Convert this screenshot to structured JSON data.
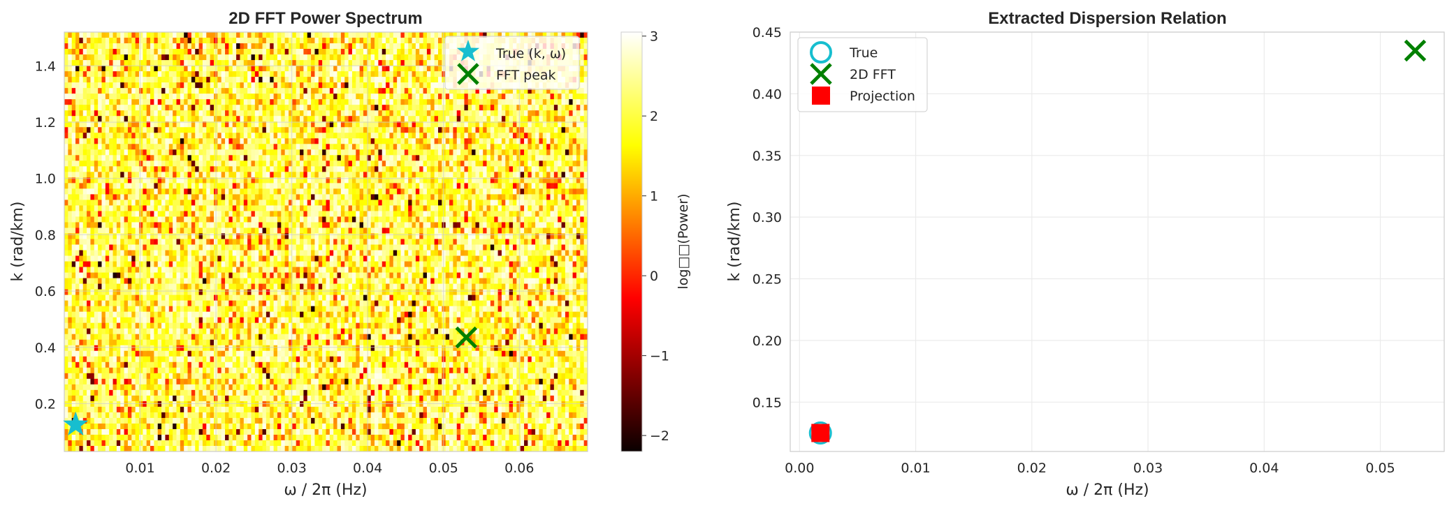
{
  "chart_data": [
    {
      "type": "heatmap",
      "title": "2D FFT Power Spectrum",
      "xlabel": "ω / 2π (Hz)",
      "ylabel": "k (rad/km)",
      "xlim": [
        0.0,
        0.069
      ],
      "ylim": [
        0.03,
        1.52
      ],
      "xticks": [
        0.01,
        0.02,
        0.03,
        0.04,
        0.05,
        0.06
      ],
      "xtick_labels": [
        "0.01",
        "0.02",
        "0.03",
        "0.04",
        "0.05",
        "0.06"
      ],
      "yticks": [
        0.2,
        0.4,
        0.6,
        0.8,
        1.0,
        1.2,
        1.4
      ],
      "ytick_labels": [
        "0.2",
        "0.4",
        "0.6",
        "0.8",
        "1.0",
        "1.2",
        "1.4"
      ],
      "colormap": "hot",
      "colorbar": {
        "label": "log□□(Power)",
        "range": [
          -2.2,
          3.05
        ],
        "ticks": [
          -2,
          -1,
          0,
          1,
          2,
          3
        ],
        "tick_labels": [
          "−2",
          "−1",
          "0",
          "1",
          "2",
          "3"
        ]
      },
      "markers": [
        {
          "name": "True (k, ω)",
          "x": 0.0015,
          "y": 0.125,
          "shape": "star",
          "color": "#17becf"
        },
        {
          "name": "FFT peak",
          "x": 0.053,
          "y": 0.435,
          "shape": "x",
          "color": "#008000"
        }
      ],
      "legend": [
        "True (k, ω)",
        "FFT peak"
      ],
      "legend_position": "top-right"
    },
    {
      "type": "scatter",
      "title": "Extracted Dispersion Relation",
      "xlabel": "ω / 2π (Hz)",
      "ylabel": "k (rad/km)",
      "xlim": [
        -0.0008,
        0.0555
      ],
      "ylim": [
        0.11,
        0.45
      ],
      "xticks": [
        0.0,
        0.01,
        0.02,
        0.03,
        0.04,
        0.05
      ],
      "xtick_labels": [
        "0.00",
        "0.01",
        "0.02",
        "0.03",
        "0.04",
        "0.05"
      ],
      "yticks": [
        0.15,
        0.2,
        0.25,
        0.3,
        0.35,
        0.4,
        0.45
      ],
      "ytick_labels": [
        "0.15",
        "0.20",
        "0.25",
        "0.30",
        "0.35",
        "0.40",
        "0.45"
      ],
      "grid": true,
      "series": [
        {
          "name": "True",
          "shape": "circle-open",
          "color": "#17becf",
          "x": [
            0.0018
          ],
          "y": [
            0.125
          ]
        },
        {
          "name": "2D FFT",
          "shape": "x",
          "color": "#008000",
          "x": [
            0.053
          ],
          "y": [
            0.435
          ]
        },
        {
          "name": "Projection",
          "shape": "square",
          "color": "#ff0000",
          "x": [
            0.0018
          ],
          "y": [
            0.125
          ]
        }
      ],
      "legend_position": "top-left"
    }
  ]
}
